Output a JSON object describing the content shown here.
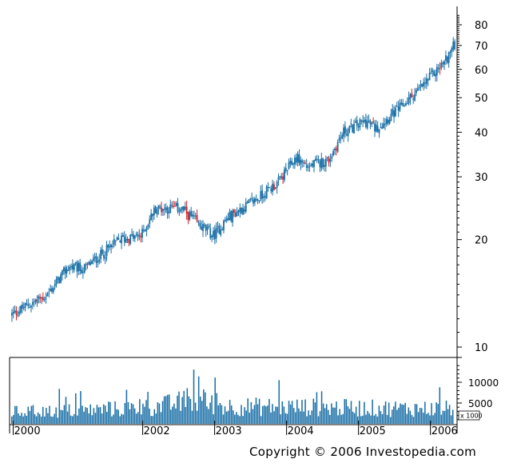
{
  "chart_data": [
    {
      "type": "candlestick",
      "title": "",
      "y_scale": "log",
      "ylim": [
        9.5,
        85
      ],
      "y_ticks": [
        10,
        20,
        30,
        40,
        50,
        60,
        70,
        80
      ],
      "x_ticks": [
        "2000",
        "2002",
        "2003",
        "2004",
        "2005",
        "2006"
      ],
      "x_range": [
        "2000",
        "2006"
      ],
      "colors": {
        "up": "#1a6fa6",
        "down": "#e02020"
      },
      "price_path": [
        {
          "x": 2000.0,
          "y": 12.3
        },
        {
          "x": 2000.5,
          "y": 14.0
        },
        {
          "x": 2000.8,
          "y": 16.8
        },
        {
          "x": 2001.0,
          "y": 16.5
        },
        {
          "x": 2001.3,
          "y": 18.5
        },
        {
          "x": 2001.5,
          "y": 20.0
        },
        {
          "x": 2001.8,
          "y": 20.5
        },
        {
          "x": 2002.0,
          "y": 24.5
        },
        {
          "x": 2002.35,
          "y": 24.5
        },
        {
          "x": 2002.6,
          "y": 22.0
        },
        {
          "x": 2002.8,
          "y": 20.5
        },
        {
          "x": 2003.0,
          "y": 23.0
        },
        {
          "x": 2003.4,
          "y": 26.0
        },
        {
          "x": 2003.7,
          "y": 29.0
        },
        {
          "x": 2003.95,
          "y": 34.0
        },
        {
          "x": 2004.1,
          "y": 32.0
        },
        {
          "x": 2004.4,
          "y": 33.5
        },
        {
          "x": 2004.6,
          "y": 40.0
        },
        {
          "x": 2004.9,
          "y": 43.0
        },
        {
          "x": 2005.05,
          "y": 41.0
        },
        {
          "x": 2005.4,
          "y": 47.0
        },
        {
          "x": 2005.7,
          "y": 54.0
        },
        {
          "x": 2006.0,
          "y": 63.0
        },
        {
          "x": 2006.15,
          "y": 71.0
        }
      ]
    },
    {
      "type": "bar",
      "title": "",
      "ylabel_multiplier": "x 1000",
      "y_ticks": [
        5000,
        10000
      ],
      "ylim": [
        0,
        15000
      ],
      "color": "#1a6fa6",
      "volume_level": [
        {
          "x": 2000.0,
          "y": 3500
        },
        {
          "x": 2001.0,
          "y": 4000
        },
        {
          "x": 2002.0,
          "y": 5000
        },
        {
          "x": 2002.5,
          "y": 7000
        },
        {
          "x": 2003.0,
          "y": 5200
        },
        {
          "x": 2004.0,
          "y": 5000
        },
        {
          "x": 2005.0,
          "y": 4700
        },
        {
          "x": 2006.15,
          "y": 4500
        }
      ]
    }
  ],
  "copyright": "Copyright © 2006 Investopedia.com"
}
